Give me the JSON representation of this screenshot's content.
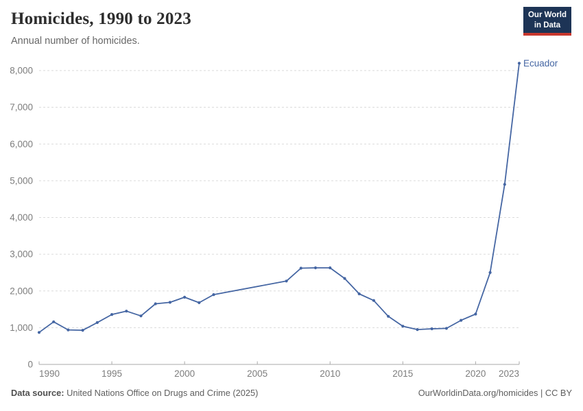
{
  "header": {
    "title": "Homicides, 1990 to 2023",
    "subtitle": "Annual number of homicides."
  },
  "logo": {
    "line1": "Our World",
    "line2": "in Data",
    "bg_color": "#1d3456",
    "accent_color": "#c8372d"
  },
  "chart_data": {
    "type": "line",
    "title": "Homicides, 1990 to 2023",
    "subtitle": "Annual number of homicides.",
    "xlabel": "",
    "ylabel": "",
    "xlim": [
      1990,
      2023
    ],
    "ylim": [
      0,
      8200
    ],
    "xticks": [
      1990,
      1995,
      2000,
      2005,
      2010,
      2015,
      2020,
      2023
    ],
    "yticks": [
      0,
      1000,
      2000,
      3000,
      4000,
      5000,
      6000,
      7000,
      8000
    ],
    "grid": "horizontal dashed gridlines, no vertical gridlines, no left axis line",
    "legend": "entity label at end of line",
    "missing_data_note": "no data markers for 2003-2006; straight connector drawn between 2002 and 2007",
    "series": [
      {
        "name": "Ecuador",
        "color": "#4566a3",
        "points": [
          [
            1990,
            870
          ],
          [
            1991,
            1160
          ],
          [
            1992,
            940
          ],
          [
            1993,
            930
          ],
          [
            1994,
            1140
          ],
          [
            1995,
            1360
          ],
          [
            1996,
            1450
          ],
          [
            1997,
            1320
          ],
          [
            1998,
            1650
          ],
          [
            1999,
            1690
          ],
          [
            2000,
            1830
          ],
          [
            2001,
            1680
          ],
          [
            2002,
            1900
          ],
          [
            2007,
            2270
          ],
          [
            2008,
            2620
          ],
          [
            2009,
            2630
          ],
          [
            2010,
            2630
          ],
          [
            2011,
            2340
          ],
          [
            2012,
            1920
          ],
          [
            2013,
            1740
          ],
          [
            2014,
            1310
          ],
          [
            2015,
            1040
          ],
          [
            2016,
            950
          ],
          [
            2017,
            970
          ],
          [
            2018,
            980
          ],
          [
            2019,
            1200
          ],
          [
            2020,
            1370
          ],
          [
            2021,
            2500
          ],
          [
            2022,
            4900
          ],
          [
            2023,
            8200
          ]
        ]
      }
    ]
  },
  "footer": {
    "source_label": "Data source:",
    "source_text": " United Nations Office on Drugs and Crime (2025)",
    "link_text": "OurWorldinData.org/homicides | CC BY"
  }
}
